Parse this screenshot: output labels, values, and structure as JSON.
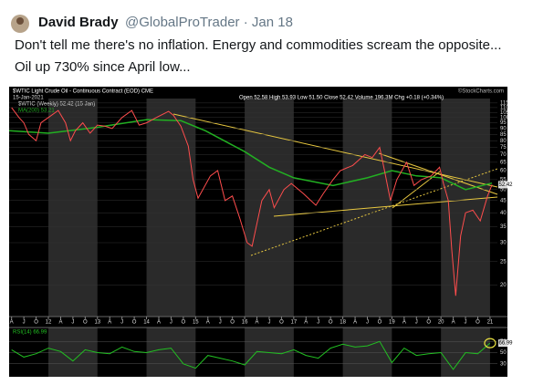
{
  "tweet": {
    "author": "David Brady",
    "handle": "@GlobalProTrader · Jan 18",
    "text": [
      "Don't tell me there's no inflation. Energy and commodities scream the opposite...",
      "Oil up 730% since April low..."
    ]
  },
  "chart": {
    "type": "line",
    "title": "$WTIC Light Crude Oil - Continuous Contract (EOD) CME",
    "date": "15-Jan-2021",
    "legend": "$WTIC (Weekly) 52.42 (15 Jan)",
    "ma_legend": "MA(200) 53.21",
    "ohlc": "Open 52.58 High 53.93 Low 51.50 Close 52.42 Volume 196.3M Chg +0.18 (+0.34%)",
    "credit": "©StockCharts.com",
    "log_scale": true,
    "xlim": [
      2011.2,
      2021.15
    ],
    "ylim": [
      15,
      120
    ],
    "yticks": [
      115,
      110,
      105,
      100,
      95,
      90,
      85,
      80,
      75,
      70,
      65,
      60,
      55,
      50,
      45,
      40,
      35,
      30,
      25,
      20
    ],
    "xticks": [
      {
        "value": 2011.25,
        "label": "A"
      },
      {
        "value": 2011.5,
        "label": "J"
      },
      {
        "value": 2011.75,
        "label": "O"
      },
      {
        "value": 2012,
        "label": "12"
      },
      {
        "value": 2012.25,
        "label": "A"
      },
      {
        "value": 2012.5,
        "label": "J"
      },
      {
        "value": 2012.75,
        "label": "O"
      },
      {
        "value": 2013,
        "label": "13"
      },
      {
        "value": 2013.25,
        "label": "A"
      },
      {
        "value": 2013.5,
        "label": "J"
      },
      {
        "value": 2013.75,
        "label": "O"
      },
      {
        "value": 2014,
        "label": "14"
      },
      {
        "value": 2014.25,
        "label": "A"
      },
      {
        "value": 2014.5,
        "label": "J"
      },
      {
        "value": 2014.75,
        "label": "O"
      },
      {
        "value": 2015,
        "label": "15"
      },
      {
        "value": 2015.25,
        "label": "A"
      },
      {
        "value": 2015.5,
        "label": "J"
      },
      {
        "value": 2015.75,
        "label": "O"
      },
      {
        "value": 2016,
        "label": "16"
      },
      {
        "value": 2016.25,
        "label": "A"
      },
      {
        "value": 2016.5,
        "label": "J"
      },
      {
        "value": 2016.75,
        "label": "O"
      },
      {
        "value": 2017,
        "label": "17"
      },
      {
        "value": 2017.25,
        "label": "A"
      },
      {
        "value": 2017.5,
        "label": "J"
      },
      {
        "value": 2017.75,
        "label": "O"
      },
      {
        "value": 2018,
        "label": "18"
      },
      {
        "value": 2018.25,
        "label": "A"
      },
      {
        "value": 2018.5,
        "label": "J"
      },
      {
        "value": 2018.75,
        "label": "O"
      },
      {
        "value": 2019,
        "label": "19"
      },
      {
        "value": 2019.25,
        "label": "A"
      },
      {
        "value": 2019.5,
        "label": "J"
      },
      {
        "value": 2019.75,
        "label": "O"
      },
      {
        "value": 2020,
        "label": "20"
      },
      {
        "value": 2020.25,
        "label": "A"
      },
      {
        "value": 2020.5,
        "label": "J"
      },
      {
        "value": 2020.75,
        "label": "O"
      },
      {
        "value": 2021,
        "label": "21"
      }
    ],
    "price": {
      "name": "$WTIC",
      "color": "#ff4d4d",
      "x": [
        2011.25,
        2011.4,
        2011.5,
        2011.6,
        2011.75,
        2011.85,
        2012.0,
        2012.2,
        2012.35,
        2012.45,
        2012.55,
        2012.7,
        2012.85,
        2013.0,
        2013.15,
        2013.3,
        2013.5,
        2013.7,
        2013.85,
        2014.0,
        2014.2,
        2014.45,
        2014.55,
        2014.7,
        2014.85,
        2014.95,
        2015.05,
        2015.3,
        2015.45,
        2015.6,
        2015.75,
        2015.9,
        2016.05,
        2016.15,
        2016.35,
        2016.5,
        2016.6,
        2016.8,
        2016.95,
        2017.2,
        2017.45,
        2017.6,
        2017.8,
        2017.95,
        2018.2,
        2018.45,
        2018.6,
        2018.75,
        2018.85,
        2018.97,
        2019.1,
        2019.3,
        2019.45,
        2019.6,
        2019.8,
        2019.97,
        2020.05,
        2020.15,
        2020.22,
        2020.3,
        2020.4,
        2020.5,
        2020.65,
        2020.8,
        2020.95,
        2021.04
      ],
      "values": [
        110,
        100,
        95,
        85,
        80,
        95,
        100,
        107,
        95,
        80,
        88,
        95,
        86,
        93,
        92,
        90,
        100,
        107,
        93,
        95,
        100,
        106,
        102,
        92,
        76,
        55,
        46,
        57,
        60,
        45,
        47,
        38,
        30,
        29,
        45,
        50,
        42,
        50,
        53,
        48,
        43,
        48,
        55,
        60,
        63,
        70,
        68,
        75,
        60,
        45,
        55,
        65,
        52,
        55,
        57,
        62,
        53,
        45,
        28,
        18,
        32,
        40,
        41,
        37,
        47,
        52.42
      ]
    },
    "ma": {
      "name": "MA(200)",
      "color": "#22b022",
      "x": [
        2011.2,
        2012.0,
        2013.0,
        2014.0,
        2014.7,
        2015.2,
        2016.0,
        2016.5,
        2017.0,
        2017.8,
        2018.5,
        2019.0,
        2019.5,
        2020.0,
        2020.5,
        2021.04
      ],
      "values": [
        88,
        86,
        91,
        98,
        97,
        88,
        72,
        62,
        56,
        52,
        56,
        60,
        57,
        56,
        50,
        53.21
      ]
    },
    "rsi": {
      "label": "RSI(14) 66.99",
      "last": "66.99",
      "color": "#22c022",
      "ylim": [
        10,
        90
      ],
      "yticks": [
        70,
        50,
        30
      ],
      "x": [
        2011.25,
        2011.5,
        2011.75,
        2012,
        2012.25,
        2012.5,
        2012.75,
        2013,
        2013.25,
        2013.5,
        2013.75,
        2014,
        2014.25,
        2014.5,
        2014.75,
        2015,
        2015.25,
        2015.5,
        2015.75,
        2016,
        2016.25,
        2016.5,
        2016.75,
        2017,
        2017.25,
        2017.5,
        2017.75,
        2018,
        2018.25,
        2018.5,
        2018.75,
        2019,
        2019.25,
        2019.5,
        2019.75,
        2020,
        2020.25,
        2020.5,
        2020.75,
        2021
      ],
      "values": [
        55,
        42,
        48,
        58,
        52,
        35,
        55,
        50,
        48,
        60,
        52,
        50,
        55,
        58,
        30,
        22,
        45,
        40,
        35,
        28,
        52,
        50,
        48,
        55,
        45,
        40,
        58,
        65,
        60,
        62,
        70,
        32,
        58,
        45,
        48,
        50,
        20,
        50,
        48,
        66.99
      ]
    }
  }
}
